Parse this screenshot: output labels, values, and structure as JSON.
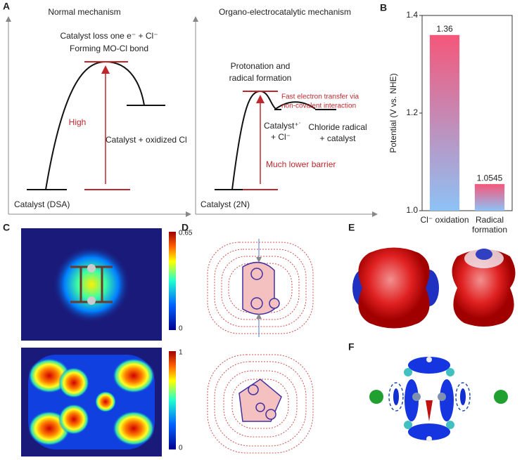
{
  "panel_labels": [
    "A",
    "B",
    "C",
    "D",
    "E",
    "F"
  ],
  "panel_a": {
    "left": {
      "title": "Normal mechanism",
      "peak_label": [
        "Catalyst loss one e⁻ + Cl⁻",
        "Forming MO-Cl bond"
      ],
      "barrier_label": "High",
      "product": "Catalyst + oxidized Cl",
      "start": "Catalyst (DSA)"
    },
    "right": {
      "title": "Organo-electrocatalytic mechanism",
      "peak_label": [
        "Protonation and",
        "radical formation"
      ],
      "transfer_label": [
        "Fast electron transfer via",
        "non-covalent interaction"
      ],
      "intermediate": [
        "Catalyst⁺˙",
        "+ Cl⁻"
      ],
      "product": [
        "Chloride radical",
        "+ catalyst"
      ],
      "barrier_label": "Much lower barrier",
      "start": "Catalyst (2N)"
    }
  },
  "chart_data": {
    "type": "bar",
    "ylabel": "Potential (V vs. NHE)",
    "categories": [
      "Cl⁻ oxidation",
      "Radical formation"
    ],
    "values": [
      1.36,
      1.0545
    ],
    "gradient": [
      "#f5577a",
      "#8ec2f6"
    ],
    "ylim": [
      1,
      1.4
    ],
    "yticks": [
      {
        "value": 1,
        "label": "1.0"
      },
      1.2,
      1.4
    ]
  },
  "panel_c": {
    "top_colorbar": [
      "0.65",
      "0"
    ],
    "bottom_colorbar": [
      "1",
      "0"
    ]
  }
}
